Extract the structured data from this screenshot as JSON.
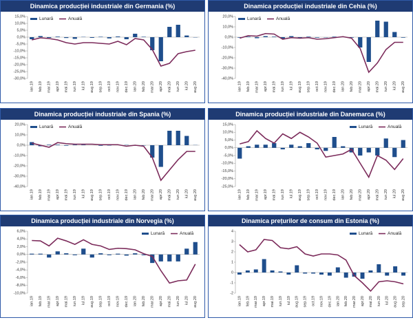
{
  "chart_data": [
    {
      "type": "bar_line",
      "title": "Dinamica producției industriale din Germania (%)",
      "legend": "upper left",
      "categories": [
        "ian.19",
        "feb.19",
        "mar.19",
        "apr.19",
        "mai.19",
        "iun.19",
        "iul.19",
        "aug.19",
        "sep.19",
        "oct.19",
        "nov.19",
        "dec.19",
        "ian.20",
        "feb.20",
        "mar.20",
        "apr.20",
        "mai.20",
        "iun.20",
        "iul.20",
        "aug.20"
      ],
      "series": [
        {
          "name": "Lunară",
          "type": "bar",
          "color": "#1f4e8c",
          "values": [
            -1.5,
            0.8,
            -0.5,
            0.4,
            -0.6,
            -1.2,
            0.2,
            -0.5,
            0.3,
            -0.9,
            0.5,
            -1.5,
            2.5,
            0.3,
            -9.5,
            -17.5,
            7.5,
            9,
            1.2,
            -0.2
          ]
        },
        {
          "name": "Anuală",
          "type": "line",
          "color": "#7b2a5a",
          "values": [
            -2,
            -0.5,
            -1,
            -2,
            -4,
            -5,
            -4,
            -4,
            -4.5,
            -5,
            -3,
            -5.5,
            -1,
            -2,
            -9,
            -21,
            -19,
            -12,
            -10.5,
            -9.5
          ]
        }
      ],
      "ylim": [
        -30,
        15
      ],
      "yticks": [
        {
          "value": -30,
          "label": "-30,0%"
        },
        {
          "value": -25,
          "label": "-25,0%"
        },
        {
          "value": -20,
          "label": "-20,0%"
        },
        {
          "value": -15,
          "label": "-15,0%"
        },
        {
          "value": -10,
          "label": "-10,0%"
        },
        {
          "value": -5,
          "label": "-5,0%"
        },
        {
          "value": 0,
          "label": "0,0%"
        },
        {
          "value": 5,
          "label": "5,0%"
        },
        {
          "value": 10,
          "label": "10,0%"
        },
        {
          "value": 15,
          "label": "15,0%"
        }
      ]
    },
    {
      "type": "bar_line",
      "title": "Dinamica producției industriale din Cehia (%)",
      "legend": "upper left",
      "categories": [
        "ian.19",
        "feb.19",
        "mar.19",
        "apr.19",
        "mai.19",
        "iun.19",
        "iul.19",
        "aug.19",
        "sep.19",
        "oct.19",
        "nov.19",
        "dec.19",
        "ian.20",
        "feb.20",
        "mar.20",
        "apr.20",
        "mai.20",
        "iun.20",
        "iul.20",
        "aug.20"
      ],
      "series": [
        {
          "name": "Lunară",
          "type": "bar",
          "color": "#1f4e8c",
          "values": [
            -0.5,
            0.5,
            -1,
            1,
            0.5,
            -1.5,
            1,
            -1,
            0.5,
            -0.5,
            -0.3,
            0.5,
            0.2,
            -0.5,
            -10,
            -24,
            16,
            15,
            5,
            -0.5
          ]
        },
        {
          "name": "Anuală",
          "type": "line",
          "color": "#7b2a5a",
          "values": [
            -1,
            1.5,
            1,
            3.5,
            3,
            -2,
            -0.5,
            -1,
            -0.5,
            -2,
            -1.5,
            -0.5,
            0.5,
            -1,
            -11,
            -34,
            -25,
            -12,
            -5,
            -5
          ]
        }
      ],
      "ylim": [
        -40,
        20
      ],
      "yticks": [
        {
          "value": -40,
          "label": "-40,0%"
        },
        {
          "value": -30,
          "label": "-30,0%"
        },
        {
          "value": -20,
          "label": "-20,0%"
        },
        {
          "value": -10,
          "label": "-10,0%"
        },
        {
          "value": 0,
          "label": "0,0%"
        },
        {
          "value": 10,
          "label": "10,0%"
        },
        {
          "value": 20,
          "label": "20,0%"
        }
      ]
    },
    {
      "type": "bar_line",
      "title": "Dinamica producției industriale din Spania (%)",
      "legend": "upper left",
      "categories": [
        "ian.19",
        "feb.19",
        "mar.19",
        "apr.19",
        "mai.19",
        "iun.19",
        "iul.19",
        "aug.19",
        "sep.19",
        "oct.19",
        "nov.19",
        "dec.19",
        "ian.20",
        "feb.20",
        "mar.20",
        "apr.20",
        "mai.20",
        "iun.20",
        "iul.20",
        "aug.20"
      ],
      "series": [
        {
          "name": "Lunară",
          "type": "bar",
          "color": "#1f4e8c",
          "values": [
            3,
            -1,
            0.5,
            0.5,
            -0.5,
            0.5,
            0.5,
            0,
            -0.5,
            -0.3,
            0.5,
            0.3,
            -0.5,
            -0.3,
            -12,
            -21,
            14,
            14,
            9,
            0.2
          ]
        },
        {
          "name": "Anuală",
          "type": "line",
          "color": "#7b2a5a",
          "values": [
            2,
            0,
            -2,
            2.5,
            1.5,
            1,
            1,
            1,
            0.5,
            0.5,
            0.5,
            -1,
            0,
            -1,
            -12,
            -34,
            -24,
            -14,
            -6,
            -6
          ]
        }
      ],
      "ylim": [
        -40,
        20
      ],
      "yticks": [
        {
          "value": -40,
          "label": "-40,0%"
        },
        {
          "value": -30,
          "label": "-30,0%"
        },
        {
          "value": -20,
          "label": "-20,0%"
        },
        {
          "value": -10,
          "label": "-10,0%"
        },
        {
          "value": 0,
          "label": "0,0%"
        },
        {
          "value": 10,
          "label": "10,0%"
        },
        {
          "value": 20,
          "label": "20,0%"
        }
      ]
    },
    {
      "type": "bar_line",
      "title": "Dinamica producției industriale din Danemarca (%)",
      "legend": "upper right",
      "categories": [
        "ian.19",
        "feb.19",
        "mar.19",
        "apr.19",
        "mai.19",
        "iun.19",
        "iul.19",
        "aug.19",
        "sep.19",
        "oct.19",
        "nov.19",
        "dec.19",
        "ian.20",
        "feb.20",
        "mar.20",
        "apr.20",
        "mai.20",
        "iun.20",
        "iul.20",
        "aug.20"
      ],
      "series": [
        {
          "name": "Lunară",
          "type": "bar",
          "color": "#1f4e8c",
          "values": [
            -7,
            1,
            2,
            2,
            3,
            -1,
            2,
            1,
            3,
            -1,
            -2,
            7,
            1,
            -3,
            -5,
            -3,
            -5,
            6,
            -6,
            5
          ]
        },
        {
          "name": "Anuală",
          "type": "line",
          "color": "#7b2a5a",
          "values": [
            2.5,
            4,
            11,
            6,
            3,
            9,
            6,
            10,
            7,
            3,
            -6,
            -5,
            -4,
            -1,
            -10,
            -19,
            -5,
            -8,
            -14,
            -7
          ]
        }
      ],
      "ylim": [
        -25,
        15
      ],
      "yticks": [
        {
          "value": -25,
          "label": "-25,0%"
        },
        {
          "value": -20,
          "label": "-20,0%"
        },
        {
          "value": -15,
          "label": "-15,0%"
        },
        {
          "value": -10,
          "label": "-10,0%"
        },
        {
          "value": -5,
          "label": "-5,0%"
        },
        {
          "value": 0,
          "label": "0,0%"
        },
        {
          "value": 5,
          "label": "5,0%"
        },
        {
          "value": 10,
          "label": "10,0%"
        },
        {
          "value": 15,
          "label": "15,0%"
        }
      ]
    },
    {
      "type": "bar_line",
      "title": "Dinamica producției industriale din Norvegia (%)",
      "legend": "upper right",
      "categories": [
        "ian.19",
        "feb.19",
        "mar.19",
        "apr.19",
        "mai.19",
        "iun.19",
        "iul.19",
        "aug.19",
        "sep.19",
        "oct.19",
        "nov.19",
        "dec.19",
        "ian.20",
        "feb.20",
        "mar.20",
        "apr.20",
        "mai.20",
        "iun.20",
        "iul.20",
        "aug.20"
      ],
      "series": [
        {
          "name": "Lunară",
          "type": "bar",
          "color": "#1f4e8c",
          "values": [
            0.2,
            0.2,
            -0.8,
            0.8,
            0.3,
            -0.2,
            1.5,
            -0.8,
            0.3,
            -0.2,
            0.2,
            -0.3,
            0.3,
            -0.2,
            -2.2,
            -1.8,
            -1.8,
            -1.8,
            1.5,
            3.2
          ]
        },
        {
          "name": "Anuală",
          "type": "line",
          "color": "#7b2a5a",
          "values": [
            3.6,
            3.5,
            2.2,
            4.2,
            3.5,
            2.6,
            3.8,
            2.6,
            2.2,
            1.3,
            1.6,
            1.5,
            1.2,
            0.2,
            -0.5,
            -4.2,
            -7.4,
            -6.8,
            -6.6,
            -2.5
          ]
        }
      ],
      "ylim": [
        -10,
        6
      ],
      "yticks": [
        {
          "value": -10,
          "label": "-10,0%"
        },
        {
          "value": -8,
          "label": "-8,0%"
        },
        {
          "value": -6,
          "label": "-6,0%"
        },
        {
          "value": -4,
          "label": "-4,0%"
        },
        {
          "value": -2,
          "label": "-2,0%"
        },
        {
          "value": 0,
          "label": "0,0%"
        },
        {
          "value": 2,
          "label": "2,0%"
        },
        {
          "value": 4,
          "label": "4,0%"
        },
        {
          "value": 6,
          "label": "6,0%"
        }
      ]
    },
    {
      "type": "bar_line",
      "title": "Dinamica prețurilor de consum din Estonia (%)",
      "legend": "upper right",
      "categories": [
        "ian.19",
        "feb.19",
        "mar.19",
        "apr.19",
        "mai.19",
        "iun.19",
        "iul.19",
        "aug.19",
        "sep.19",
        "oct.19",
        "nov.19",
        "dec.19",
        "ian.20",
        "feb.20",
        "mar.20",
        "apr.20",
        "mai.20",
        "iun.20",
        "iul.20",
        "aug.20",
        "sep.20"
      ],
      "series": [
        {
          "name": "Lunară",
          "type": "bar",
          "color": "#1f4e8c",
          "values": [
            -0.2,
            0.2,
            0.3,
            1.3,
            0.2,
            0.1,
            -0.2,
            0.7,
            -0.1,
            -0.1,
            -0.2,
            -0.3,
            0.5,
            -0.5,
            -0.4,
            -0.6,
            0.2,
            0.8,
            -0.3,
            0.6,
            -0.3
          ]
        },
        {
          "name": "Anuală",
          "type": "line",
          "color": "#7b2a5a",
          "values": [
            2.7,
            2,
            2.2,
            3.2,
            3.1,
            2.4,
            2.3,
            2.5,
            1.8,
            1.6,
            1.8,
            1.8,
            1.7,
            1.2,
            -0.3,
            -1,
            -1.8,
            -0.9,
            -0.8,
            -0.9,
            -1.1
          ]
        }
      ],
      "ylim": [
        -2,
        4
      ],
      "yticks": [
        -2,
        -1,
        0,
        1,
        2,
        3,
        4
      ]
    }
  ]
}
